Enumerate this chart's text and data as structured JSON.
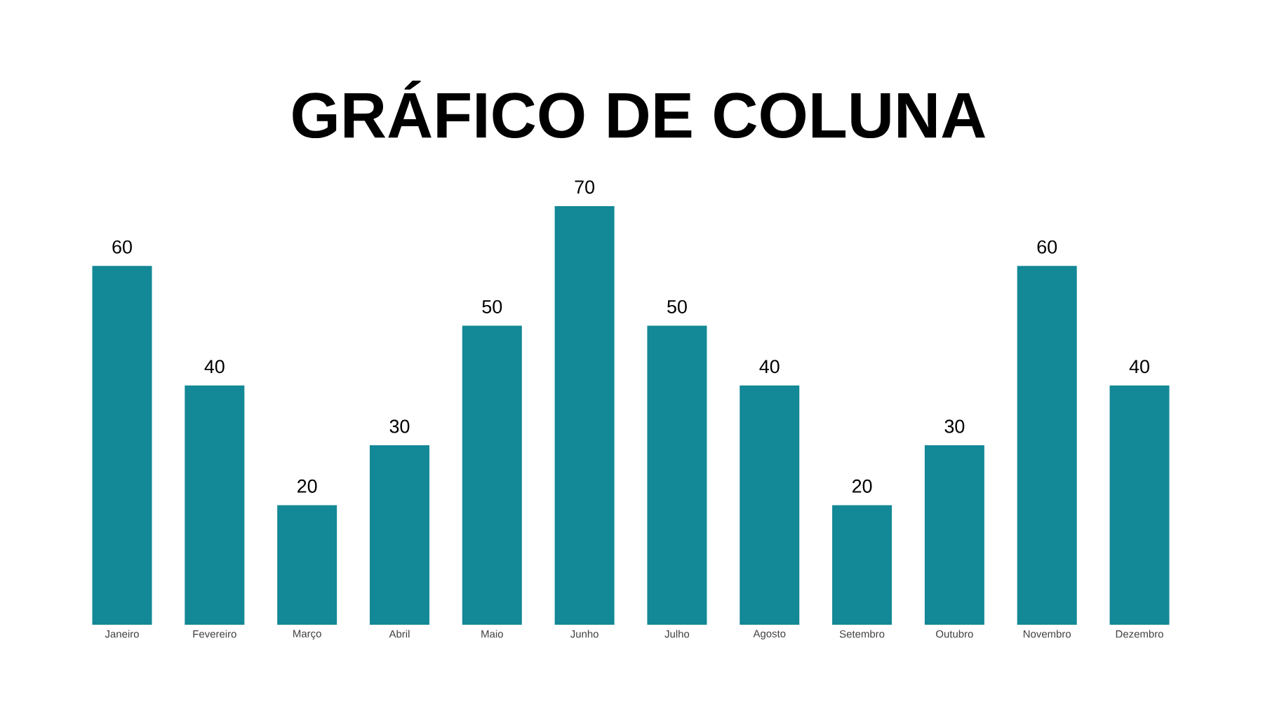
{
  "chart_data": {
    "type": "bar",
    "title": "GRÁFICO DE COLUNA",
    "categories": [
      "Janeiro",
      "Fevereiro",
      "Março",
      "Abril",
      "Maio",
      "Junho",
      "Julho",
      "Agosto",
      "Setembro",
      "Outubro",
      "Novembro",
      "Dezembro"
    ],
    "values": [
      60,
      40,
      20,
      30,
      50,
      70,
      50,
      40,
      20,
      30,
      60,
      40
    ],
    "color": "#138896",
    "data_labels": true
  }
}
